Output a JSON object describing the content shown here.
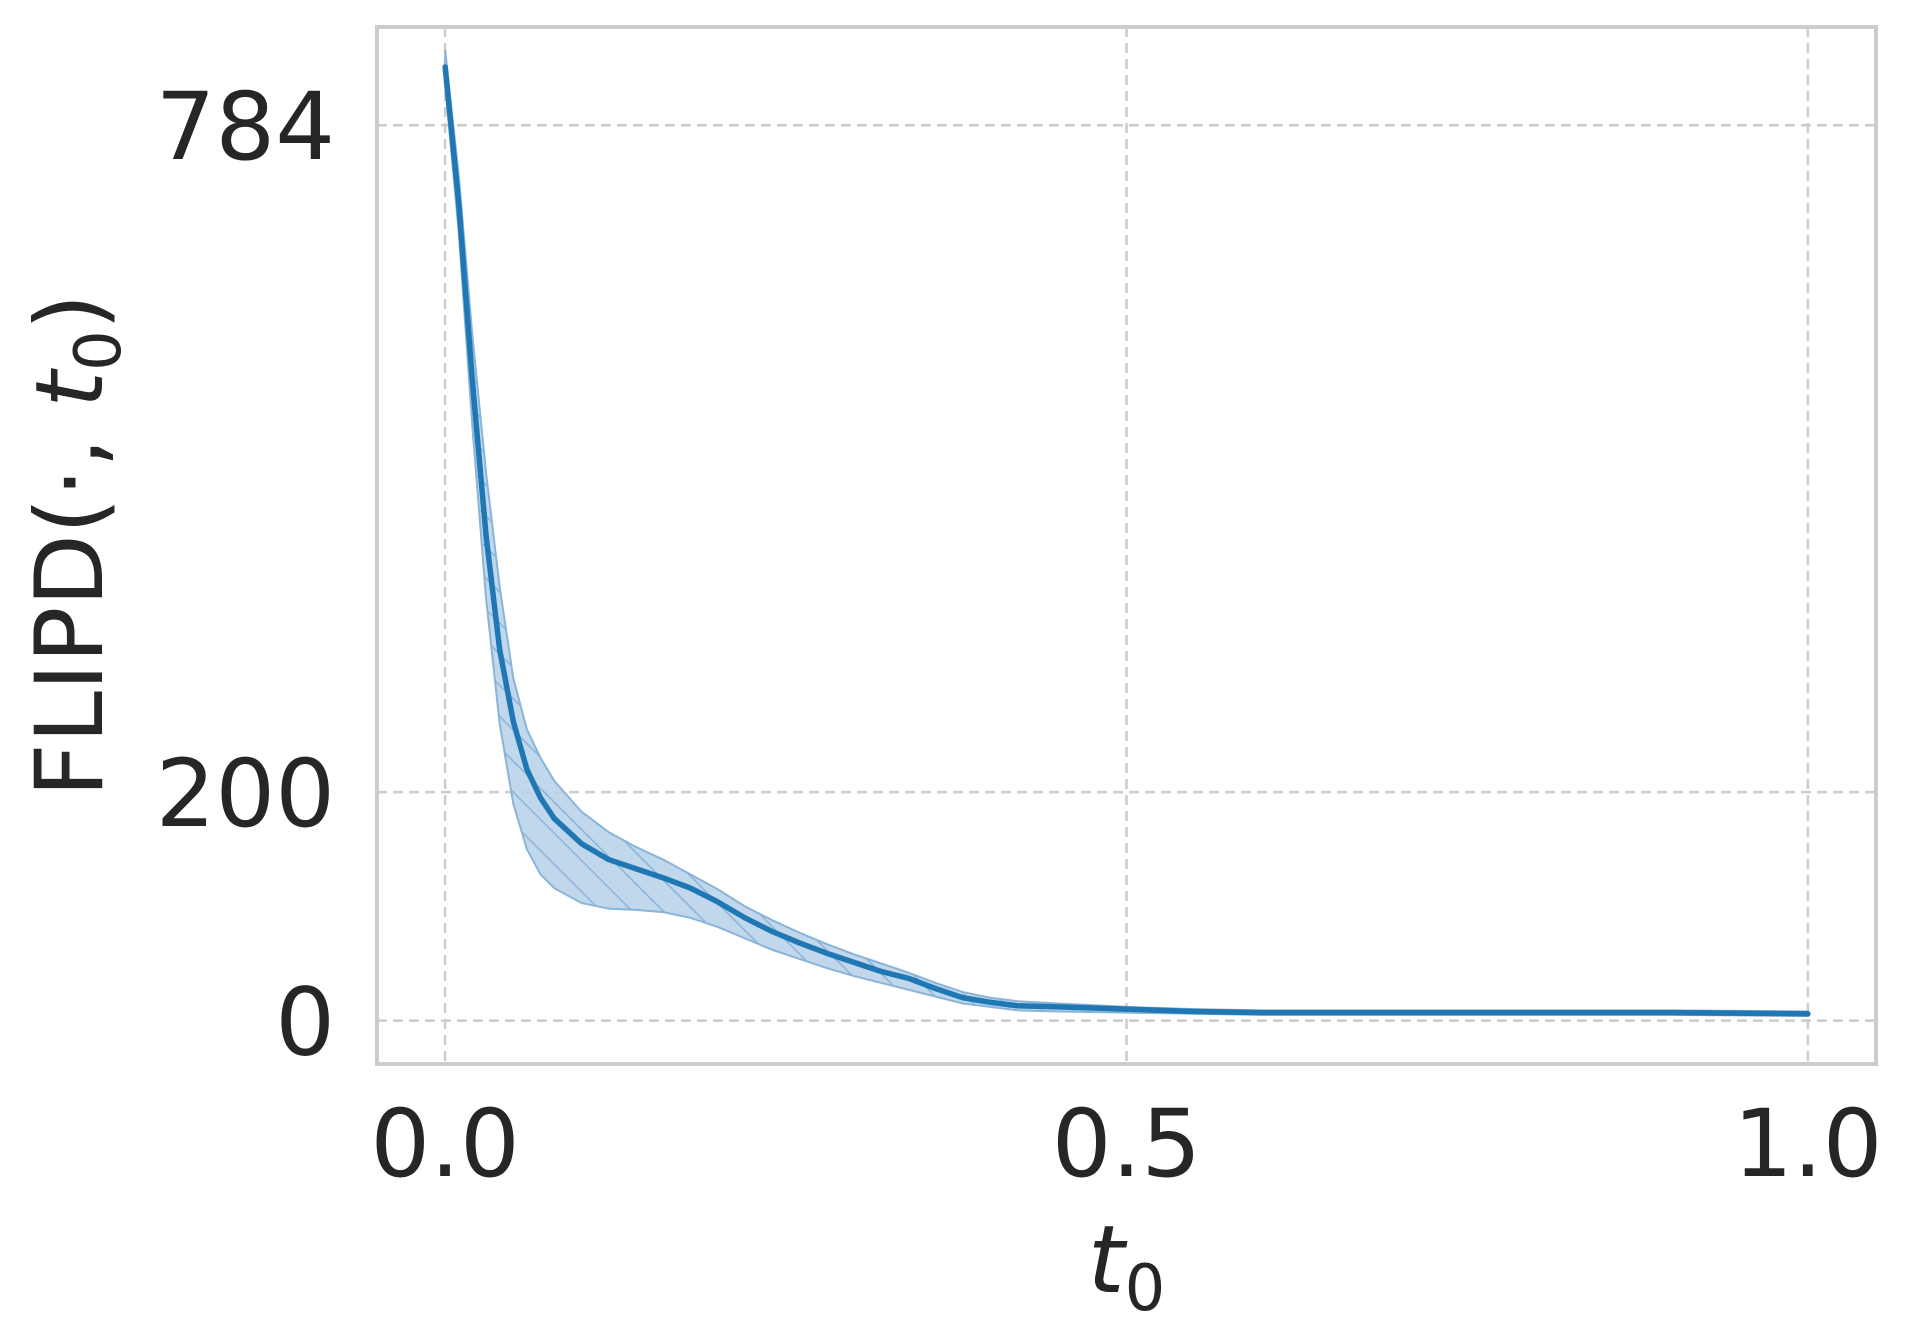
{
  "chart_data": {
    "type": "line",
    "title": "",
    "xlabel": "t",
    "xlabel_sub": "0",
    "ylabel_prefix": "FLIPD(·, ",
    "ylabel_var": "t",
    "ylabel_sub": "0",
    "ylabel_suffix": ")",
    "xlim": [
      -0.05,
      1.05
    ],
    "ylim": [
      -38,
      870
    ],
    "x_ticks": [
      {
        "value": 0.0,
        "label": "0.0"
      },
      {
        "value": 0.5,
        "label": "0.5"
      },
      {
        "value": 1.0,
        "label": "1.0"
      }
    ],
    "y_ticks": [
      {
        "value": 0,
        "label": "0"
      },
      {
        "value": 200,
        "label": "200"
      },
      {
        "value": 784,
        "label": "784"
      }
    ],
    "grid": true,
    "legend": false,
    "colors": {
      "line": "#1f77b4",
      "band_fill": "#b9d3ea",
      "band_hatch": "#8ab4d8",
      "grid": "#cccccc",
      "frame": "#cccccc",
      "text": "#262626"
    },
    "series": [
      {
        "x": [
          0.0,
          0.01,
          0.02,
          0.03,
          0.04,
          0.05,
          0.06,
          0.07,
          0.08,
          0.1,
          0.12,
          0.14,
          0.16,
          0.18,
          0.2,
          0.22,
          0.24,
          0.26,
          0.28,
          0.3,
          0.32,
          0.34,
          0.36,
          0.38,
          0.4,
          0.42,
          0.45,
          0.5,
          0.55,
          0.6,
          0.7,
          0.8,
          0.9,
          1.0
        ],
        "y": [
          835,
          715,
          560,
          425,
          325,
          262,
          220,
          195,
          177,
          155,
          141,
          133,
          125,
          116,
          104,
          90,
          78,
          68,
          59,
          51,
          43,
          37,
          28,
          20,
          16,
          13,
          12,
          10,
          8,
          7,
          7,
          7,
          7,
          6
        ],
        "upper": [
          850,
          740,
          600,
          480,
          380,
          300,
          255,
          230,
          210,
          183,
          165,
          152,
          141,
          128,
          115,
          100,
          88,
          77,
          67,
          58,
          50,
          42,
          33,
          25,
          20,
          17,
          15,
          12,
          10,
          9,
          9,
          9,
          9,
          8
        ],
        "lower": [
          820,
          690,
          520,
          370,
          260,
          190,
          150,
          128,
          116,
          103,
          98,
          97,
          95,
          90,
          82,
          72,
          62,
          54,
          46,
          39,
          33,
          27,
          21,
          15,
          12,
          9,
          8,
          7,
          6,
          5,
          5,
          5,
          5,
          4
        ]
      }
    ]
  }
}
